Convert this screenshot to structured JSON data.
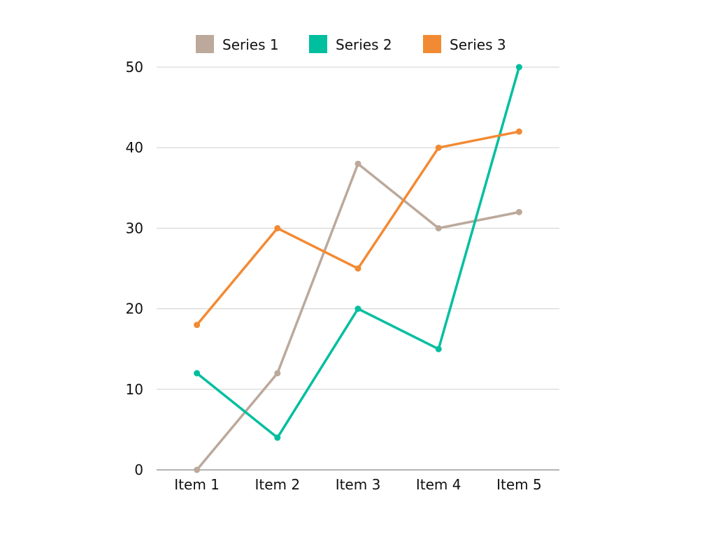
{
  "chart_data": {
    "type": "line",
    "categories": [
      "Item 1",
      "Item 2",
      "Item 3",
      "Item 4",
      "Item 5"
    ],
    "series": [
      {
        "name": "Series 1",
        "values": [
          0,
          12,
          38,
          30,
          32
        ],
        "color": "#bca99b"
      },
      {
        "name": "Series 2",
        "values": [
          12,
          4,
          20,
          15,
          50
        ],
        "color": "#00bf9f"
      },
      {
        "name": "Series 3",
        "values": [
          18,
          30,
          25,
          40,
          42
        ],
        "color": "#f28a33"
      }
    ],
    "ylim": [
      0,
      50
    ],
    "yticks": [
      0,
      10,
      20,
      30,
      40,
      50
    ],
    "grid": true,
    "legend_position": "top"
  }
}
